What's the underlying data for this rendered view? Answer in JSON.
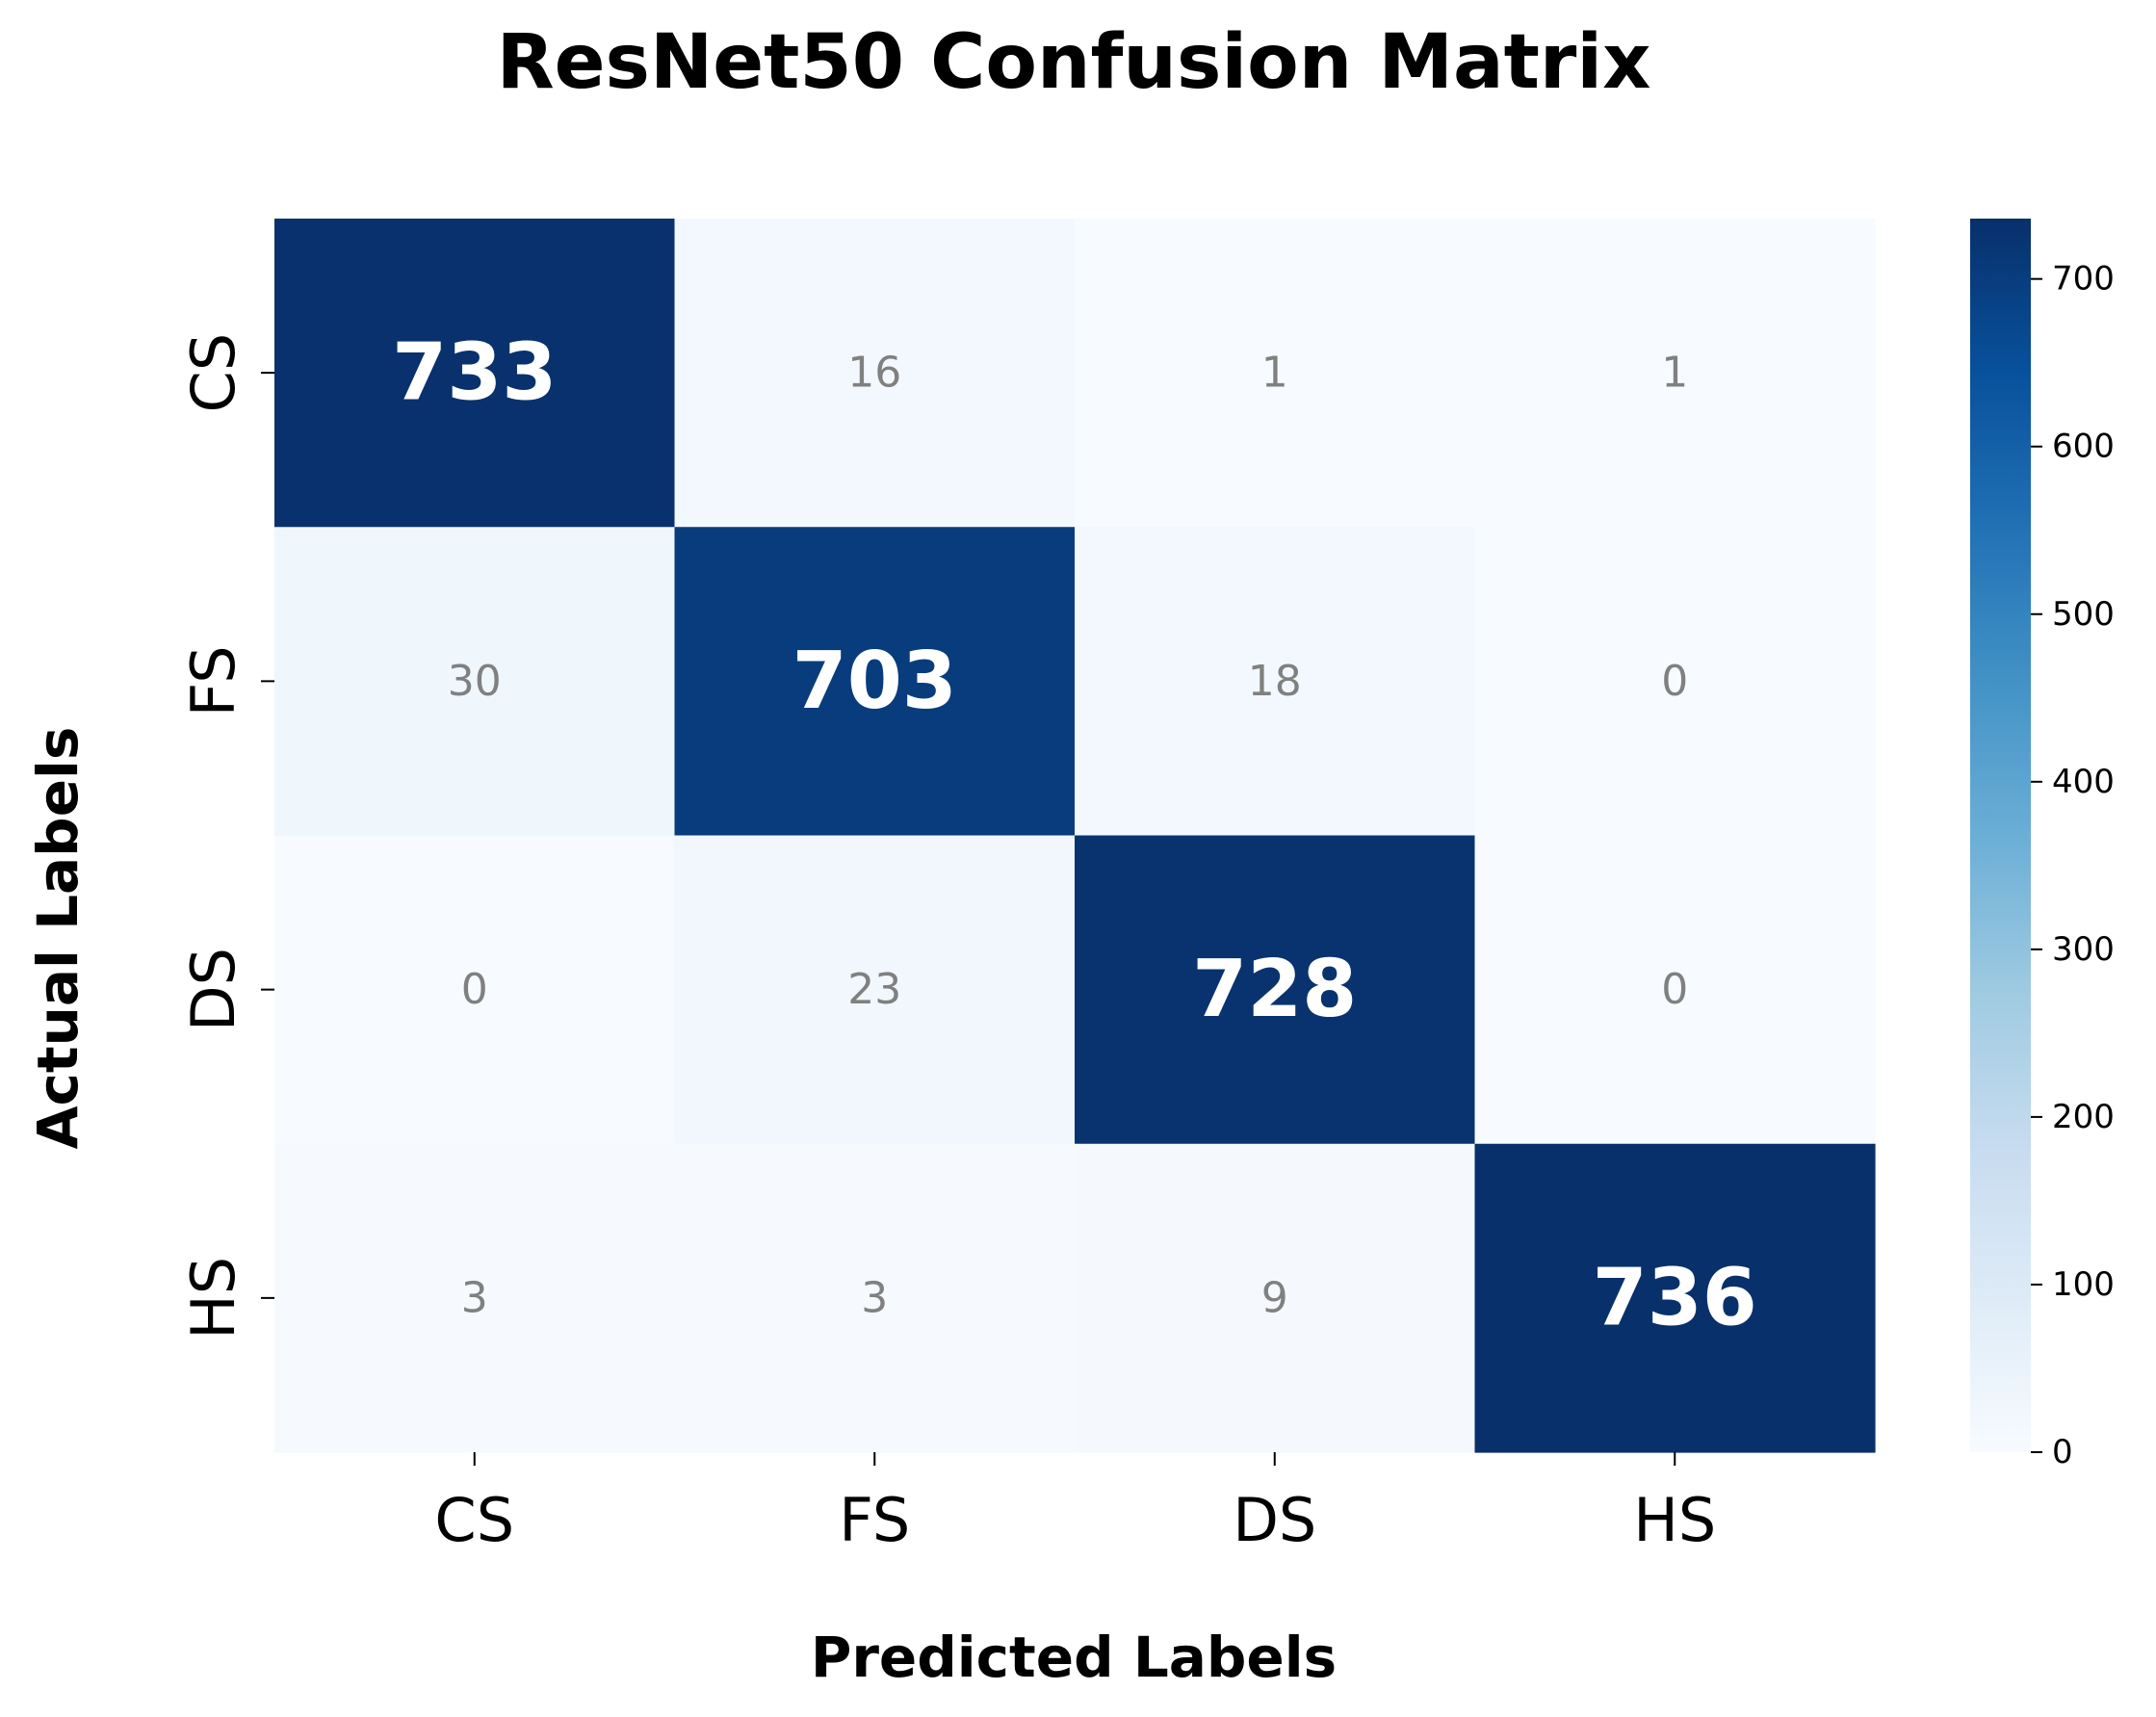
{
  "chart_data": {
    "type": "heatmap",
    "title": "ResNet50 Confusion Matrix",
    "xlabel": "Predicted Labels",
    "ylabel": "Actual Labels",
    "x_categories": [
      "CS",
      "FS",
      "DS",
      "HS"
    ],
    "y_categories": [
      "CS",
      "FS",
      "DS",
      "HS"
    ],
    "matrix": [
      [
        733,
        16,
        1,
        1
      ],
      [
        30,
        703,
        18,
        0
      ],
      [
        0,
        23,
        728,
        0
      ],
      [
        3,
        3,
        9,
        736
      ]
    ],
    "colormap": "Blues",
    "colorbar": {
      "range": [
        0,
        736
      ],
      "ticks": [
        0,
        100,
        200,
        300,
        400,
        500,
        600,
        700
      ]
    },
    "annotations": {
      "diagonal_color": "#ffffff",
      "off_diagonal_color": "#808080"
    }
  }
}
